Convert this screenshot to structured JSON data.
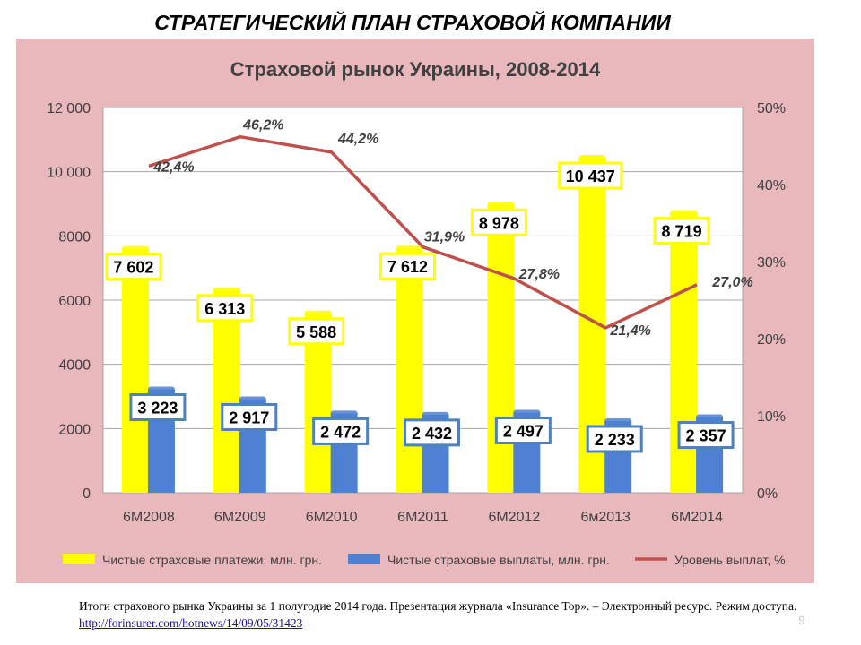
{
  "slide": {
    "title": "СТРАТЕГИЧЕСКИЙ ПЛАН СТРАХОВОЙ КОМПАНИИ",
    "caption_text": "Итоги страхового рынка Украины за 1 полугодие 2014 года. Презентация журнала «Insurance Top». – Электронный ресурс. Режим доступа. ",
    "caption_link": "http://forinsurer.com/hotnews/14/09/05/31423",
    "page_number": "9"
  },
  "colors": {
    "chart_bg": "#e8b8bc",
    "plot_bg": "#ffffff",
    "payments": "#ffff00",
    "payouts": "#4f81d2",
    "ratio_line": "#c0504d",
    "label_border_yellow": "#ffff00",
    "label_border_blue": "#4f81bd"
  },
  "chart_data": {
    "type": "bar",
    "title": "Страховой рынок Украины, 2008-2014",
    "categories": [
      "6М2008",
      "6М2009",
      "6М2010",
      "6М2011",
      "6М2012",
      "6м2013",
      "6М2014"
    ],
    "series": [
      {
        "name": "Чистые страховые платежи, млн. грн.",
        "axis": "left",
        "values": [
          7602,
          6313,
          5588,
          7612,
          8978,
          10437,
          8719
        ],
        "labels": [
          "7 602",
          "6 313",
          "5 588",
          "7 612",
          "8 978",
          "10 437",
          "8 719"
        ]
      },
      {
        "name": "Чистые страховые выплаты, млн. грн.",
        "axis": "left",
        "values": [
          3223,
          2917,
          2472,
          2432,
          2497,
          2233,
          2357
        ],
        "labels": [
          "3 223",
          "2 917",
          "2 472",
          "2 432",
          "2 497",
          "2 233",
          "2 357"
        ]
      },
      {
        "name": "Уровень выплат, %",
        "axis": "right",
        "type": "line",
        "values": [
          42.4,
          46.2,
          44.2,
          31.9,
          27.8,
          21.4,
          27.0
        ],
        "labels": [
          "42,4%",
          "46,2%",
          "44,2%",
          "31,9%",
          "27,8%",
          "21,4%",
          "27,0%"
        ]
      }
    ],
    "yaxis_left": {
      "range": [
        0,
        12000
      ],
      "ticks": [
        "0",
        "2000",
        "4000",
        "6000",
        "8000",
        "10 000",
        "12 000"
      ]
    },
    "yaxis_right": {
      "range": [
        0,
        50
      ],
      "ticks": [
        "0%",
        "10%",
        "20%",
        "30%",
        "40%",
        "50%"
      ]
    },
    "grid": true,
    "legend": {
      "position": "bottom",
      "items": [
        "Чистые страховые платежи, млн. грн.",
        "Чистые страховые выплаты, млн. грн.",
        "Уровень выплат, %"
      ]
    }
  }
}
